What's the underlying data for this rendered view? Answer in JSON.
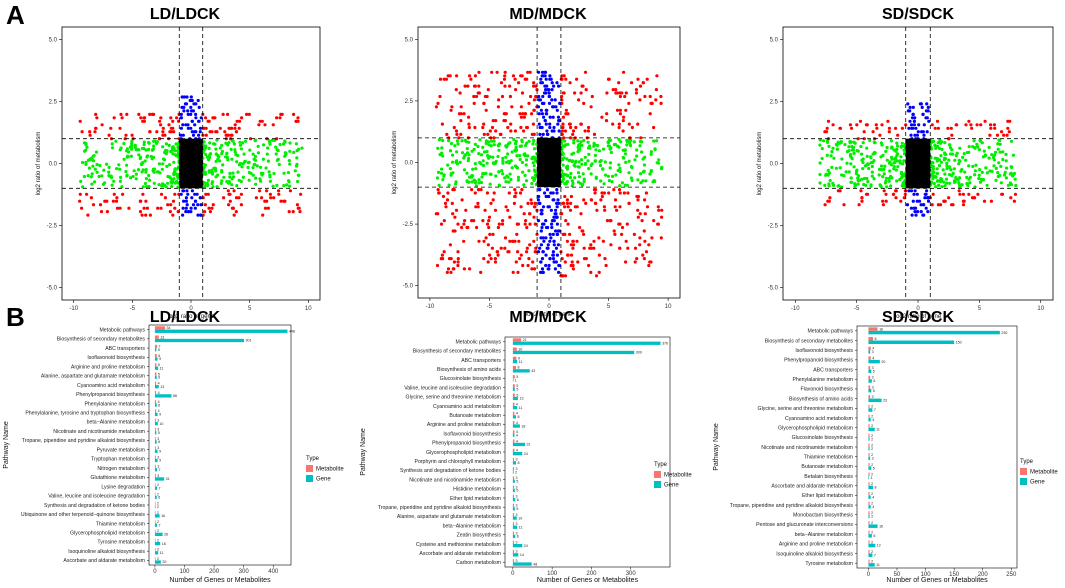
{
  "figure": {
    "panel_a_label": "A",
    "panel_b_label": "B"
  },
  "colors": {
    "up_up": "#ff0000",
    "gene_only": "#00ee00",
    "metab_only": "#0000ff",
    "ns": "#000000",
    "metabolite_bar": "#f8766d",
    "gene_bar": "#00bfc4"
  },
  "chart_data": [
    {
      "type": "scatter",
      "title": "LD/LDCK",
      "xlabel": "log2 ratio of gene",
      "ylabel": "log2 ratio of metabolism",
      "xlim": [
        -11,
        11
      ],
      "ylim": [
        -5.5,
        5.5
      ],
      "xticks": [
        -10,
        -5,
        0,
        5,
        10
      ],
      "yticks": [
        -5.0,
        -2.5,
        0.0,
        2.5,
        5.0
      ],
      "ytick_labels": [
        "-5.0",
        "-2.5",
        "0.0",
        "2.5",
        "5.0"
      ],
      "thresholds": {
        "x": [
          -1,
          1
        ],
        "y": [
          -1,
          1
        ]
      },
      "spread": {
        "x_range": [
          -9.5,
          9.5
        ],
        "y_max": 2.1,
        "y_min": -2.2,
        "blue_y_max": 2.8,
        "blue_y_min": -2.2
      }
    },
    {
      "type": "scatter",
      "title": "MD/MDCK",
      "xlabel": "log2 ratio of gene",
      "ylabel": "log2 ratio of metabolism",
      "xlim": [
        -11,
        11
      ],
      "ylim": [
        -5.5,
        5.5
      ],
      "xticks": [
        -10,
        -5,
        0,
        5,
        10
      ],
      "yticks": [
        -5.0,
        -2.5,
        0.0,
        2.5,
        5.0
      ],
      "ytick_labels": [
        "-5.0",
        "-2.5",
        "0.0",
        "2.5",
        "5.0"
      ],
      "thresholds": {
        "x": [
          -1,
          1
        ],
        "y": [
          -1,
          1
        ]
      },
      "spread": {
        "x_range": [
          -9.5,
          9.5
        ],
        "y_max": 3.8,
        "y_min": -4.6,
        "blue_y_max": 3.8,
        "blue_y_min": -4.5
      }
    },
    {
      "type": "scatter",
      "title": "SD/SDCK",
      "xlabel": "log2 ratio of gene",
      "ylabel": "log2 ratio of metabolism",
      "xlim": [
        -11,
        11
      ],
      "ylim": [
        -5.5,
        5.5
      ],
      "xticks": [
        -10,
        -5,
        0,
        5,
        10
      ],
      "yticks": [
        -5.0,
        -2.5,
        0.0,
        2.5,
        5.0
      ],
      "ytick_labels": [
        "-5.0",
        "-2.5",
        "0.0",
        "2.5",
        "5.0"
      ],
      "thresholds": {
        "x": [
          -1,
          1
        ],
        "y": [
          -1,
          1
        ]
      },
      "spread": {
        "x_range": [
          -10,
          8
        ],
        "y_max": 1.8,
        "y_min": -1.7,
        "blue_y_max": 2.5,
        "blue_y_min": -2.1
      }
    },
    {
      "type": "bar",
      "orientation": "horizontal",
      "title": "LD/LDCK",
      "xlabel": "Number of Genes or Metabolites",
      "ylabel": "Pathway Name",
      "xlim": [
        -20,
        460
      ],
      "xticks": [
        0,
        100,
        200,
        300,
        400
      ],
      "legend": {
        "title": "Type",
        "entries": [
          "Metabolite",
          "Gene"
        ]
      },
      "categories": [
        "Metabolic pathways",
        "Biosynthesis of secondary metabolites",
        "ABC transporters",
        "Isoflavonoid biosynthesis",
        "Arginine and proline metabolism",
        "Alanine, aspartate and glutamate metabolism",
        "Cyanoamino acid metabolism",
        "Phenylpropanoid biosynthesis",
        "Phenylalanine metabolism",
        "Phenylalanine, tyrosine and tryptophan biosynthesis",
        "beta−Alanine metabolism",
        "Nicotinate and nicotinamide metabolism",
        "Tropane, piperidine and pyridine alkaloid biosynthesis",
        "Pyruvate metabolism",
        "Tryptophan metabolism",
        "Nitrogen metabolism",
        "Glutathione metabolism",
        "Lysine degradation",
        "Valine, leucine and isoleucine degradation",
        "Synthesis and degradation of ketone bodies",
        "Ubiquinone and other terpenoid−quinone biosynthesis",
        "Thiamine metabolism",
        "Glycerophospholipid metabolism",
        "Tyrosine metabolism",
        "Isoquinoline alkaloid biosynthesis",
        "Ascorbate and aldarate metabolism"
      ],
      "series": [
        {
          "name": "Metabolite",
          "values": [
            34,
            13,
            7,
            6,
            5,
            5,
            4,
            4,
            4,
            4,
            3,
            3,
            3,
            3,
            3,
            3,
            3,
            2,
            2,
            2,
            2,
            2,
            2,
            2,
            2,
            2
          ]
        },
        {
          "name": "Gene",
          "values": [
            448,
            301,
            5,
            9,
            11,
            6,
            13,
            56,
            6,
            9,
            10,
            5,
            6,
            9,
            9,
            7,
            31,
            7,
            6,
            2,
            16,
            7,
            26,
            18,
            11,
            20
          ]
        }
      ]
    },
    {
      "type": "bar",
      "orientation": "horizontal",
      "title": "MD/MDCK",
      "xlabel": "Number of Genes or Metabolites",
      "ylabel": "Pathway Name",
      "xlim": [
        -20,
        400
      ],
      "xticks": [
        0,
        100,
        200,
        300
      ],
      "legend": {
        "title": "Type",
        "entries": [
          "Metabolite",
          "Gene"
        ]
      },
      "categories": [
        "Metabolic pathways",
        "Biosynthesis of secondary metabolites",
        "ABC transporters",
        "Biosynthesis of amino acids",
        "Glucosinolate biosynthesis",
        "Valine, leucine and isoleucine degradation",
        "Glycine, serine and threonine metabolism",
        "Cyanoamino acid metabolism",
        "Butanoate metabolism",
        "Arginine and proline metabolism",
        "Isoflavonoid biosynthesis",
        "Phenylpropanoid biosynthesis",
        "Glycerophospholipid metabolism",
        "Porphyrin and chlorophyll metabolism",
        "Synthesis and degradation of ketone bodies",
        "Nicotinate and nicotinamide metabolism",
        "Histidine metabolism",
        "Ether lipid metabolism",
        "Tropane, piperidine and pyridine alkaloid biosynthesis",
        "Alanine, aspartate and glutamate metabolism",
        "beta−Alanine metabolism",
        "Zeatin biosynthesis",
        "Cysteine and methionine metabolism",
        "Ascorbate and aldarate metabolism",
        "Carbon metabolism"
      ],
      "series": [
        {
          "name": "Metabolite",
          "values": [
            21,
            10,
            9,
            8,
            5,
            5,
            5,
            4,
            4,
            4,
            4,
            4,
            4,
            3,
            3,
            3,
            3,
            3,
            3,
            3,
            3,
            3,
            3,
            3,
            3
          ]
        },
        {
          "name": "Gene",
          "values": [
            376,
            309,
            11,
            43,
            1,
            5,
            13,
            11,
            8,
            18,
            4,
            31,
            24,
            8,
            2,
            5,
            5,
            6,
            5,
            10,
            11,
            6,
            24,
            14,
            48
          ]
        }
      ]
    },
    {
      "type": "bar",
      "orientation": "horizontal",
      "title": "SD/SDCK",
      "xlabel": "Number of Genes or Metabolites",
      "ylabel": "Pathway Name",
      "xlim": [
        -20,
        260
      ],
      "xticks": [
        0,
        50,
        100,
        150,
        200,
        250
      ],
      "legend": {
        "title": "Type",
        "entries": [
          "Metabolite",
          "Gene"
        ]
      },
      "categories": [
        "Metabolic pathways",
        "Biosynthesis of secondary metabolites",
        "Isoflavonoid biosynthesis",
        "Phenylpropanoid biosynthesis",
        "ABC transporters",
        "Phenylalanine metabolism",
        "Flavonoid biosynthesis",
        "Biosynthesis of amino acids",
        "Glycine, serine and threonine metabolism",
        "Cyanoamino acid metabolism",
        "Glycerophospholipid metabolism",
        "Glucosinolate biosynthesis",
        "Nicotinate and nicotinamide metabolism",
        "Thiamine metabolism",
        "Butanoate metabolism",
        "Betalain biosynthesis",
        "Ascorbate and aldarate metabolism",
        "Ether lipid metabolism",
        "Tropane, piperidine and pyridine alkaloid biosynthesis",
        "Monobactam biosynthesis",
        "Pentose and glucuronate interconversions",
        "beta−Alanine metabolism",
        "Arginine and proline metabolism",
        "Isoquinoline alkaloid biosynthesis",
        "Tyrosine metabolism"
      ],
      "series": [
        {
          "name": "Metabolite",
          "values": [
            16,
            8,
            4,
            4,
            3,
            3,
            3,
            3,
            2,
            2,
            2,
            2,
            2,
            2,
            2,
            2,
            2,
            2,
            2,
            2,
            2,
            2,
            2,
            2,
            2
          ]
        },
        {
          "name": "Gene",
          "values": [
            230,
            150,
            3,
            20,
            5,
            6,
            5,
            23,
            7,
            4,
            11,
            2,
            2,
            3,
            5,
            1,
            8,
            4,
            4,
            2,
            16,
            6,
            12,
            7,
            11
          ]
        }
      ]
    }
  ]
}
